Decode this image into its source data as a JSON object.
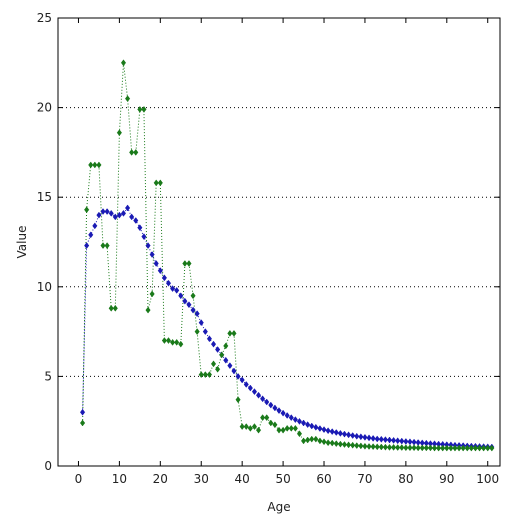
{
  "chart_data": {
    "type": "scatter",
    "title": "",
    "xlabel": "Age",
    "ylabel": "Value",
    "xlim": [
      -5,
      103
    ],
    "ylim": [
      0,
      25
    ],
    "xticks": [
      0,
      10,
      20,
      30,
      40,
      50,
      60,
      70,
      80,
      90,
      100
    ],
    "yticks": [
      0,
      5,
      10,
      15,
      20,
      25
    ],
    "grid": "horizontal-dotted",
    "legend": "none",
    "series": [
      {
        "color": "#1a1ab4",
        "marker": "diamond",
        "line": "dotted",
        "x": [
          1,
          2,
          3,
          4,
          5,
          6,
          7,
          8,
          9,
          10,
          11,
          12,
          13,
          14,
          15,
          16,
          17,
          18,
          19,
          20,
          21,
          22,
          23,
          24,
          25,
          26,
          27,
          28,
          29,
          30,
          31,
          32,
          33,
          34,
          35,
          36,
          37,
          38,
          39,
          40,
          41,
          42,
          43,
          44,
          45,
          46,
          47,
          48,
          49,
          50,
          51,
          52,
          53,
          54,
          55,
          56,
          57,
          58,
          59,
          60,
          61,
          62,
          63,
          64,
          65,
          66,
          67,
          68,
          69,
          70,
          71,
          72,
          73,
          74,
          75,
          76,
          77,
          78,
          79,
          80,
          81,
          82,
          83,
          84,
          85,
          86,
          87,
          88,
          89,
          90,
          91,
          92,
          93,
          94,
          95,
          96,
          97,
          98,
          99,
          100,
          101
        ],
        "y": [
          3.0,
          12.3,
          12.9,
          13.4,
          14.0,
          14.2,
          14.2,
          14.1,
          13.9,
          14.0,
          14.1,
          14.4,
          13.9,
          13.7,
          13.3,
          12.8,
          12.3,
          11.8,
          11.3,
          10.9,
          10.5,
          10.2,
          9.9,
          9.8,
          9.5,
          9.2,
          9.0,
          8.7,
          8.5,
          8.0,
          7.5,
          7.1,
          6.8,
          6.5,
          6.2,
          5.9,
          5.6,
          5.3,
          5.0,
          4.8,
          4.55,
          4.35,
          4.15,
          3.95,
          3.75,
          3.57,
          3.4,
          3.24,
          3.09,
          2.95,
          2.82,
          2.7,
          2.59,
          2.49,
          2.4,
          2.31,
          2.23,
          2.16,
          2.09,
          2.03,
          1.97,
          1.92,
          1.87,
          1.82,
          1.78,
          1.74,
          1.7,
          1.66,
          1.63,
          1.6,
          1.57,
          1.54,
          1.51,
          1.49,
          1.47,
          1.45,
          1.43,
          1.41,
          1.39,
          1.37,
          1.35,
          1.33,
          1.31,
          1.29,
          1.27,
          1.25,
          1.24,
          1.22,
          1.21,
          1.19,
          1.18,
          1.16,
          1.15,
          1.14,
          1.12,
          1.11,
          1.1,
          1.09,
          1.08,
          1.07,
          1.06
        ]
      },
      {
        "color": "#1a7a1a",
        "marker": "diamond",
        "line": "dotted",
        "x": [
          1,
          2,
          3,
          4,
          5,
          6,
          7,
          8,
          9,
          10,
          11,
          12,
          13,
          14,
          15,
          16,
          17,
          18,
          19,
          20,
          21,
          22,
          23,
          24,
          25,
          26,
          27,
          28,
          29,
          30,
          31,
          32,
          33,
          34,
          35,
          36,
          37,
          38,
          39,
          40,
          41,
          42,
          43,
          44,
          45,
          46,
          47,
          48,
          49,
          50,
          51,
          52,
          53,
          54,
          55,
          56,
          57,
          58,
          59,
          60,
          61,
          62,
          63,
          64,
          65,
          66,
          67,
          68,
          69,
          70,
          71,
          72,
          73,
          74,
          75,
          76,
          77,
          78,
          79,
          80,
          81,
          82,
          83,
          84,
          85,
          86,
          87,
          88,
          89,
          90,
          91,
          92,
          93,
          94,
          95,
          96,
          97,
          98,
          99,
          100,
          101
        ],
        "y": [
          2.4,
          14.3,
          16.8,
          16.8,
          16.8,
          12.3,
          12.3,
          8.8,
          8.8,
          18.6,
          22.5,
          20.5,
          17.5,
          17.5,
          19.9,
          19.9,
          8.7,
          9.6,
          15.8,
          15.8,
          7.0,
          7.0,
          6.9,
          6.9,
          6.8,
          11.3,
          11.3,
          9.5,
          7.5,
          5.1,
          5.1,
          5.1,
          5.7,
          5.4,
          6.2,
          6.7,
          7.4,
          7.4,
          3.7,
          2.2,
          2.2,
          2.1,
          2.2,
          2.0,
          2.7,
          2.7,
          2.4,
          2.3,
          2.0,
          2.0,
          2.1,
          2.1,
          2.1,
          1.8,
          1.4,
          1.45,
          1.5,
          1.5,
          1.4,
          1.35,
          1.3,
          1.28,
          1.25,
          1.22,
          1.2,
          1.18,
          1.16,
          1.14,
          1.12,
          1.1,
          1.09,
          1.08,
          1.07,
          1.06,
          1.05,
          1.04,
          1.04,
          1.03,
          1.03,
          1.02,
          1.02,
          1.02,
          1.01,
          1.01,
          1.01,
          1.01,
          1.0,
          1.0,
          1.0,
          1.0,
          1.0,
          1.0,
          1.0,
          1.0,
          1.0,
          1.0,
          1.0,
          1.0,
          1.0,
          1.0,
          1.0
        ]
      }
    ]
  }
}
